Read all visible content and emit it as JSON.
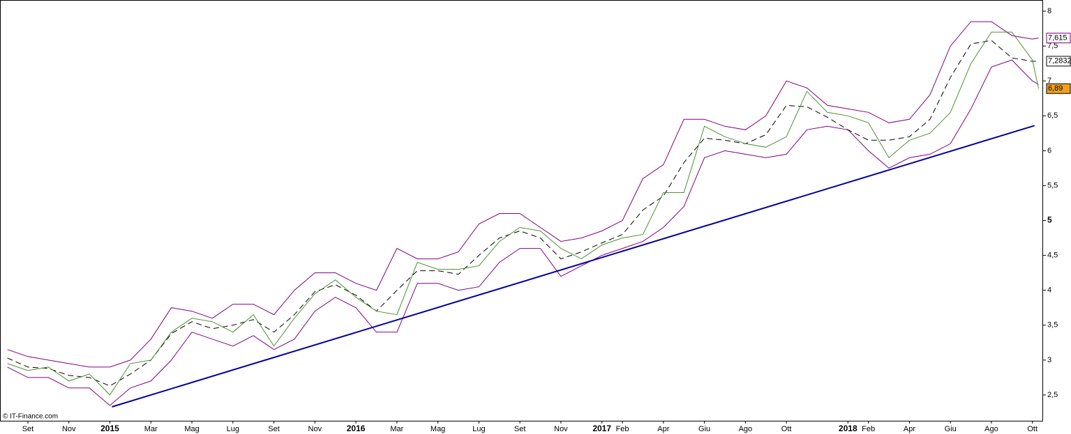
{
  "chart_data": {
    "type": "line",
    "watermark": "© IT-Finance.com",
    "x": [
      -1,
      0,
      1,
      2,
      3,
      4,
      5,
      6,
      7,
      8,
      9,
      10,
      11,
      12,
      13,
      14,
      15,
      16,
      17,
      18,
      19,
      20,
      21,
      22,
      23,
      24,
      25,
      26,
      27,
      28,
      29,
      30,
      31,
      32,
      33,
      34,
      35,
      36,
      37,
      38,
      39,
      40,
      41,
      42,
      43,
      44,
      45,
      46,
      47,
      48,
      49,
      49.3
    ],
    "series": [
      {
        "color": "#800080",
        "values": [
          3.15,
          3.05,
          3,
          2.95,
          2.9,
          2.9,
          3,
          3.3,
          3.75,
          3.7,
          3.6,
          3.8,
          3.8,
          3.65,
          4,
          4.25,
          4.25,
          4.1,
          4,
          4.6,
          4.45,
          4.45,
          4.55,
          4.95,
          5.1,
          5.1,
          4.9,
          4.7,
          4.75,
          4.85,
          5,
          5.6,
          5.8,
          6.45,
          6.45,
          6.35,
          6.3,
          6.5,
          7,
          6.9,
          6.65,
          6.6,
          6.55,
          6.4,
          6.45,
          6.8,
          7.5,
          7.85,
          7.85,
          7.65,
          7.6,
          7.615
        ],
        "value_labels": [
          null,
          null,
          null,
          null,
          null,
          null,
          null,
          null,
          null,
          null,
          null,
          null,
          null,
          null,
          null,
          null,
          null,
          null,
          null,
          null,
          null,
          null,
          null,
          null,
          null,
          null,
          null,
          null,
          null,
          null,
          null,
          null,
          null,
          null,
          null,
          null,
          null,
          null,
          null,
          null,
          null,
          null,
          null,
          null,
          null,
          null,
          null,
          null,
          null,
          null,
          null,
          "7,615"
        ]
      },
      {
        "color": "#800080",
        "values": [
          2.9,
          2.75,
          2.75,
          2.6,
          2.6,
          2.35,
          2.6,
          2.7,
          3,
          3.4,
          3.3,
          3.2,
          3.35,
          3.15,
          3.3,
          3.7,
          3.9,
          3.75,
          3.4,
          3.4,
          4.1,
          4.1,
          4,
          4.05,
          4.4,
          4.6,
          4.6,
          4.2,
          4.35,
          4.5,
          4.6,
          4.7,
          4.9,
          5.2,
          5.9,
          6,
          5.95,
          5.9,
          5.95,
          6.3,
          6.35,
          6.3,
          6,
          5.75,
          5.9,
          5.95,
          6.1,
          6.6,
          7.2,
          7.3,
          7,
          6.95
        ]
      },
      {
        "color": "#000000",
        "dashed": true,
        "values": [
          3.03,
          2.9,
          2.88,
          2.78,
          2.75,
          2.63,
          2.8,
          3,
          3.38,
          3.55,
          3.45,
          3.5,
          3.58,
          3.4,
          3.65,
          3.98,
          4.08,
          3.93,
          3.7,
          4,
          4.28,
          4.28,
          4.23,
          4.5,
          4.75,
          4.85,
          4.75,
          4.45,
          4.55,
          4.68,
          4.8,
          5.15,
          5.35,
          5.83,
          6.18,
          6.15,
          6.1,
          6.23,
          6.65,
          6.63,
          6.48,
          6.3,
          6.15,
          6.15,
          6.2,
          6.45,
          7.05,
          7.53,
          7.58,
          7.33,
          7.28,
          7.2832
        ],
        "value_labels": [
          null,
          null,
          null,
          null,
          null,
          null,
          null,
          null,
          null,
          null,
          null,
          null,
          null,
          null,
          null,
          null,
          null,
          null,
          null,
          null,
          null,
          null,
          null,
          null,
          null,
          null,
          null,
          null,
          null,
          null,
          null,
          null,
          null,
          null,
          null,
          null,
          null,
          null,
          null,
          null,
          null,
          null,
          null,
          null,
          null,
          null,
          null,
          null,
          null,
          null,
          null,
          "7,2832"
        ]
      },
      {
        "color": "#4f8f2f",
        "values": [
          2.95,
          2.85,
          2.9,
          2.7,
          2.8,
          2.5,
          2.95,
          3,
          3.4,
          3.6,
          3.55,
          3.4,
          3.65,
          3.2,
          3.6,
          3.95,
          4.15,
          3.9,
          3.7,
          3.65,
          4.4,
          4.3,
          4.3,
          4.35,
          4.7,
          4.9,
          4.85,
          4.6,
          4.45,
          4.65,
          4.75,
          4.8,
          5.4,
          5.4,
          6.35,
          6.2,
          6.1,
          6.05,
          6.2,
          6.85,
          6.55,
          6.5,
          6.4,
          5.9,
          6.15,
          6.25,
          6.55,
          7.25,
          7.7,
          7.7,
          7.3,
          6.89
        ],
        "value_labels": [
          null,
          null,
          null,
          null,
          null,
          null,
          null,
          null,
          null,
          null,
          null,
          null,
          null,
          null,
          null,
          null,
          null,
          null,
          null,
          null,
          null,
          null,
          null,
          null,
          null,
          null,
          null,
          null,
          null,
          null,
          null,
          null,
          null,
          null,
          null,
          null,
          null,
          null,
          null,
          null,
          null,
          null,
          null,
          null,
          null,
          null,
          null,
          null,
          null,
          null,
          null,
          "6,89"
        ],
        "label_fill": "#f0a020"
      },
      {
        "color": "#0000a0",
        "width": 2,
        "x": [
          4.1,
          49.1
        ],
        "values": [
          2.33,
          6.36
        ]
      }
    ],
    "xlim": [
      -1.36,
      49.52
    ],
    "xticks": [
      {
        "value": 0,
        "label": "Set"
      },
      {
        "value": 2,
        "label": "Nov"
      },
      {
        "value": 4,
        "label": "2015"
      },
      {
        "value": 6,
        "label": "Mar"
      },
      {
        "value": 8,
        "label": "Mag"
      },
      {
        "value": 10,
        "label": "Lug"
      },
      {
        "value": 12,
        "label": "Set"
      },
      {
        "value": 14,
        "label": "Nov"
      },
      {
        "value": 16,
        "label": "2016"
      },
      {
        "value": 18,
        "label": "Mar"
      },
      {
        "value": 20,
        "label": "Mag"
      },
      {
        "value": 22,
        "label": "Lug"
      },
      {
        "value": 24,
        "label": "Set"
      },
      {
        "value": 26,
        "label": "Nov"
      },
      {
        "value": 28,
        "label": "2017"
      },
      {
        "value": 29,
        "label": "Feb"
      },
      {
        "value": 31,
        "label": "Apr"
      },
      {
        "value": 33,
        "label": "Giu"
      },
      {
        "value": 35,
        "label": "Ago"
      },
      {
        "value": 37,
        "label": "Ott"
      },
      {
        "value": 40,
        "label": "2018"
      },
      {
        "value": 41,
        "label": "Feb"
      },
      {
        "value": 43,
        "label": "Apr"
      },
      {
        "value": 45,
        "label": "Giu"
      },
      {
        "value": 47,
        "label": "Ago"
      },
      {
        "value": 49,
        "label": "Ott"
      }
    ],
    "ylim": [
      2.13,
      8.16
    ],
    "yticks": [
      {
        "value": 2.5,
        "label": "2,5"
      },
      3,
      {
        "value": 3.5,
        "label": "3,5"
      },
      4,
      {
        "value": 4.5,
        "label": "4,5"
      },
      5,
      {
        "value": 5.5,
        "label": "5,5"
      },
      6,
      {
        "value": 6.5,
        "label": "6,5"
      },
      7,
      {
        "value": 7.5,
        "label": "7,5"
      },
      8
    ]
  }
}
